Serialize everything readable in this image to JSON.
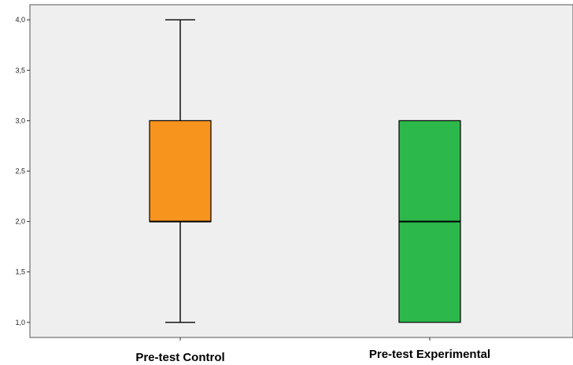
{
  "chart_data": {
    "type": "boxplot",
    "title": "",
    "xlabel": "",
    "ylabel": "",
    "ylim": [
      0.85,
      4.15
    ],
    "yticks": [
      "1,0",
      "1,5",
      "2,0",
      "2,5",
      "3,0",
      "3,5",
      "4,0"
    ],
    "ytick_values": [
      1.0,
      1.5,
      2.0,
      2.5,
      3.0,
      3.5,
      4.0
    ],
    "grid": false,
    "background": "#efefef",
    "categories": [
      "Pre-test Control",
      "Pre-test Experimental"
    ],
    "boxes": [
      {
        "category": "Pre-test Control",
        "min": 1.0,
        "q1": 2.0,
        "median": 2.0,
        "q3": 3.0,
        "max": 4.0,
        "color": "#f7941d"
      },
      {
        "category": "Pre-test Experimental",
        "min": 1.0,
        "q1": 1.0,
        "median": 2.0,
        "q3": 3.0,
        "max": 3.0,
        "color": "#2db84b"
      }
    ]
  }
}
